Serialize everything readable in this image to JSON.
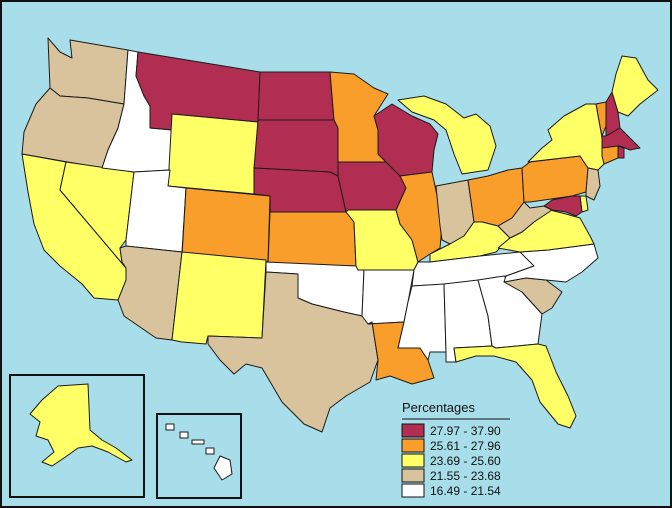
{
  "colors": {
    "ocean": "#A8DEEA",
    "border": "#1a1a1a",
    "class_1": "#B22D52",
    "class_2": "#F99E2B",
    "class_3": "#FFFF66",
    "class_4": "#D9C39D",
    "class_5": "#FFFFFF"
  },
  "legend": {
    "title": "Percentages",
    "items": [
      {
        "label": "27.97 - 37.90",
        "color": "#B22D52"
      },
      {
        "label": "25.61 - 27.96",
        "color": "#F99E2B"
      },
      {
        "label": "23.69 - 25.60",
        "color": "#FFFF66"
      },
      {
        "label": "21.55 - 23.68",
        "color": "#D9C39D"
      },
      {
        "label": "16.49 - 21.54",
        "color": "#FFFFFF"
      }
    ]
  },
  "states": {
    "WA": 4,
    "OR": 4,
    "CA": 3,
    "NV": 3,
    "ID": 5,
    "MT": 1,
    "WY": 3,
    "UT": 5,
    "AZ": 4,
    "CO": 2,
    "NM": 3,
    "ND": 1,
    "SD": 1,
    "NE": 1,
    "KS": 2,
    "OK": 5,
    "TX": 4,
    "MN": 2,
    "IA": 1,
    "MO": 3,
    "AR": 5,
    "LA": 2,
    "WI": 1,
    "IL": 2,
    "MI": 3,
    "IN": 4,
    "OH": 2,
    "KY": 3,
    "TN": 5,
    "MS": 5,
    "AL": 5,
    "GA": 5,
    "FL": 3,
    "SC": 4,
    "NC": 5,
    "VA": 3,
    "WV": 4,
    "PA": 2,
    "NY": 3,
    "VT": 2,
    "NH": 1,
    "ME": 3,
    "MA": 1,
    "RI": 1,
    "CT": 2,
    "NJ": 4,
    "DE": 3,
    "MD": 1,
    "AK": 3,
    "HI": 5
  }
}
